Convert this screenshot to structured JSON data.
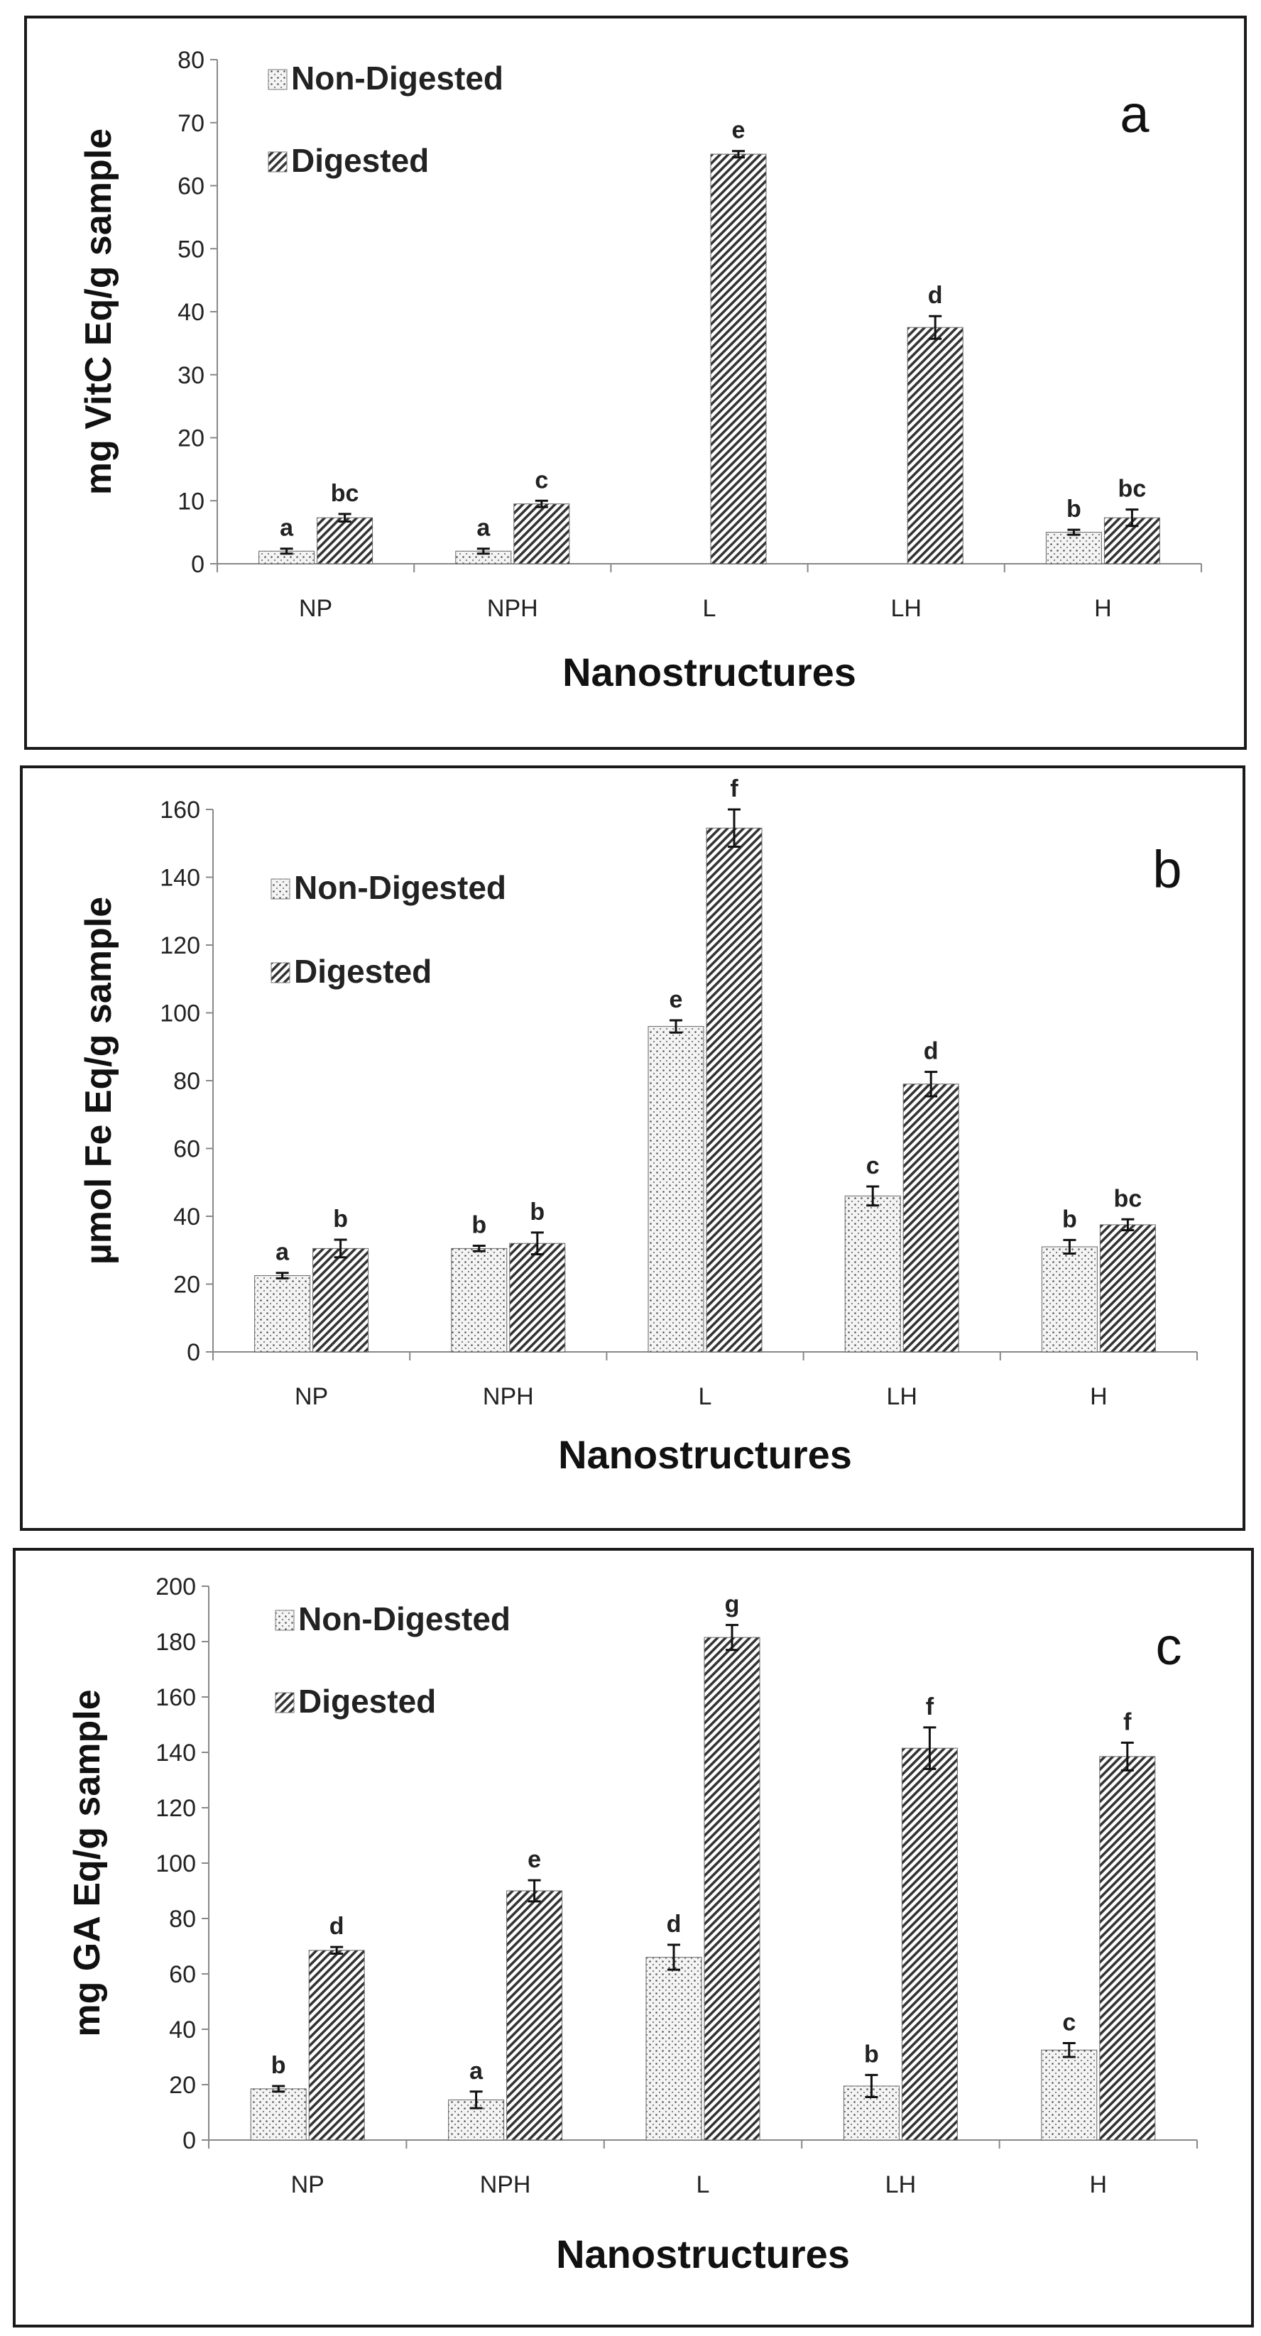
{
  "chart_data": [
    {
      "type": "bar",
      "panel_label": "a",
      "ylabel": "mg VitC Eq/g sample",
      "xlabel": "Nanostructures",
      "ylim": [
        0,
        80
      ],
      "yticks": [
        0,
        10,
        20,
        30,
        40,
        50,
        60,
        70,
        80
      ],
      "categories": [
        "NP",
        "NPH",
        "L",
        "LH",
        "H"
      ],
      "series": [
        {
          "name": "Non-Digested",
          "values": [
            2.0,
            2.0,
            null,
            null,
            5.0
          ],
          "errors": [
            0.4,
            0.4,
            null,
            null,
            0.4
          ],
          "letters": [
            "a",
            "a",
            "",
            "",
            "b"
          ]
        },
        {
          "name": "Digested",
          "values": [
            7.3,
            9.5,
            65.0,
            37.5,
            7.3
          ],
          "errors": [
            0.6,
            0.5,
            0.5,
            1.8,
            1.3
          ],
          "letters": [
            "bc",
            "c",
            "e",
            "d",
            "bc"
          ]
        }
      ]
    },
    {
      "type": "bar",
      "panel_label": "b",
      "ylabel": "µmol Fe Eq/g sample",
      "xlabel": "Nanostructures",
      "ylim": [
        0,
        160
      ],
      "yticks": [
        0,
        20,
        40,
        60,
        80,
        100,
        120,
        140,
        160
      ],
      "categories": [
        "NP",
        "NPH",
        "L",
        "LH",
        "H"
      ],
      "series": [
        {
          "name": "Non-Digested",
          "values": [
            22.5,
            30.5,
            96.0,
            46.0,
            31.0
          ],
          "errors": [
            0.8,
            0.8,
            1.8,
            2.8,
            2.0
          ],
          "letters": [
            "a",
            "b",
            "e",
            "c",
            "b"
          ]
        },
        {
          "name": "Digested",
          "values": [
            30.5,
            32.0,
            154.5,
            79.0,
            37.5
          ],
          "errors": [
            2.6,
            3.2,
            5.5,
            3.6,
            1.6
          ],
          "letters": [
            "b",
            "b",
            "f",
            "d",
            "bc"
          ]
        }
      ]
    },
    {
      "type": "bar",
      "panel_label": "c",
      "ylabel": "mg GA Eq/g sample",
      "xlabel": "Nanostructures",
      "ylim": [
        0,
        200
      ],
      "yticks": [
        0,
        20,
        40,
        60,
        80,
        100,
        120,
        140,
        160,
        180,
        200
      ],
      "categories": [
        "NP",
        "NPH",
        "L",
        "LH",
        "H"
      ],
      "series": [
        {
          "name": "Non-Digested",
          "values": [
            18.5,
            14.5,
            66.0,
            19.5,
            32.5
          ],
          "errors": [
            1.0,
            3.0,
            4.5,
            4.0,
            2.5
          ],
          "letters": [
            "b",
            "a",
            "d",
            "b",
            "c"
          ]
        },
        {
          "name": "Digested",
          "values": [
            68.5,
            90.0,
            181.5,
            141.5,
            138.5
          ],
          "errors": [
            1.2,
            3.8,
            4.5,
            7.5,
            5.0
          ],
          "letters": [
            "d",
            "e",
            "g",
            "f",
            "f"
          ]
        }
      ]
    }
  ]
}
